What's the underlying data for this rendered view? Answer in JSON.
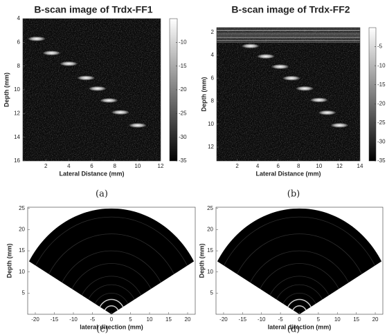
{
  "chart_data": [
    {
      "type": "bscan",
      "title": "B-scan image of Trdx-FF1",
      "xlabel": "Lateral Distance (mm)",
      "ylabel": "Depth (mm)",
      "caption": "(a)",
      "xlim": [
        0,
        12
      ],
      "ylim": [
        4,
        16
      ],
      "xticks": [
        2,
        4,
        6,
        8,
        10,
        12
      ],
      "yticks": [
        4,
        6,
        8,
        10,
        12,
        14,
        16
      ],
      "colorbar": {
        "clim": [
          -35,
          -5
        ],
        "ticks": [
          -10,
          -15,
          -20,
          -25,
          -30,
          -35
        ]
      },
      "targets": {
        "x": [
          1.2,
          2.5,
          4,
          5.5,
          6.5,
          7.5,
          8.5,
          10
        ],
        "y": [
          5.7,
          6.9,
          7.8,
          9,
          9.9,
          10.9,
          11.9,
          13
        ]
      }
    },
    {
      "type": "bscan",
      "title": "B-scan image of Trdx-FF2",
      "xlabel": "Lateral Distance (mm)",
      "ylabel": "Depth (mm)",
      "caption": "(b)",
      "xlim": [
        0,
        14
      ],
      "ylim": [
        1.6,
        13.2
      ],
      "xticks": [
        2,
        4,
        6,
        8,
        10,
        12,
        14
      ],
      "yticks": [
        2,
        4,
        6,
        8,
        10,
        12
      ],
      "colorbar": {
        "clim": [
          -35,
          0
        ],
        "ticks": [
          -5,
          -10,
          -15,
          -20,
          -25,
          -30,
          -35
        ]
      },
      "targets": {
        "x": [
          3.3,
          4.8,
          6.2,
          7.3,
          8.6,
          10,
          10.8,
          12
        ],
        "y": [
          3.2,
          4.1,
          5,
          6,
          6.9,
          7.9,
          9,
          10.1
        ]
      }
    },
    {
      "type": "sector",
      "xlabel": "lateral direction (mm)",
      "ylabel": "Depth (mm)",
      "caption": "(c)",
      "xlim": [
        -22,
        22
      ],
      "ylim": [
        0,
        25.3
      ],
      "xticks": [
        -20,
        -15,
        -10,
        -5,
        0,
        5,
        10,
        15,
        20
      ],
      "yticks": [
        5,
        10,
        15,
        20,
        25
      ],
      "fan": {
        "radius": 25,
        "half_angle_deg": 60
      }
    },
    {
      "type": "sector",
      "xlabel": "lateral direction (mm)",
      "ylabel": "Depth (mm)",
      "caption": "(d)",
      "xlim": [
        -22,
        22
      ],
      "ylim": [
        0,
        25.3
      ],
      "xticks": [
        -20,
        -15,
        -10,
        -5,
        0,
        5,
        10,
        15,
        20
      ],
      "yticks": [
        5,
        10,
        15,
        20,
        25
      ],
      "fan": {
        "radius": 25,
        "half_angle_deg": 60
      }
    }
  ]
}
